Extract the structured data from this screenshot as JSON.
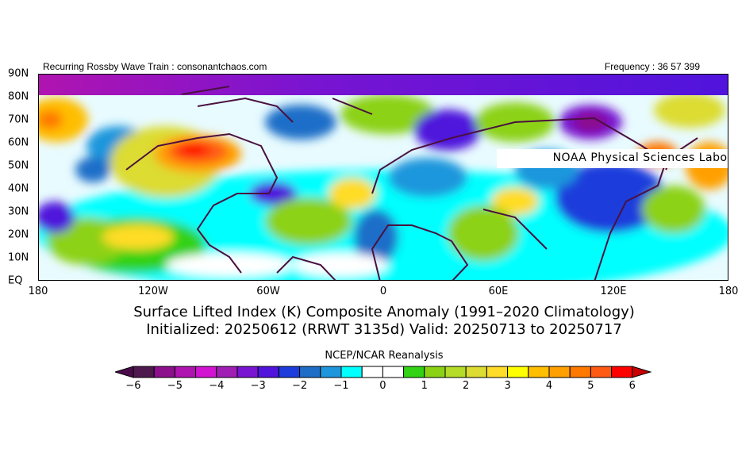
{
  "header": {
    "left": "Recurring Rossby Wave Train : consonantchaos.com",
    "right": "Frequency : 36 57 399",
    "credit": "NOAA Physical Sciences Laboratory"
  },
  "axes": {
    "lat_labels": [
      "90N",
      "80N",
      "70N",
      "60N",
      "50N",
      "40N",
      "30N",
      "20N",
      "10N",
      "EQ"
    ],
    "lon_labels": [
      "180",
      "120W",
      "60W",
      "0",
      "60E",
      "120E",
      "180"
    ]
  },
  "title": {
    "line1": "Surface Lifted Index (K) Composite Anomaly (1991–2020 Climatology)",
    "line2": "Initialized: 20250612 (RRWT 3135d) Valid: 20250713 to 20250717"
  },
  "colorbar": {
    "title": "NCEP/NCAR Reanalysis",
    "labels": [
      "−6",
      "−5",
      "−4",
      "−3",
      "−2",
      "−1",
      "0",
      "1",
      "2",
      "3",
      "4",
      "5",
      "6"
    ],
    "range": [
      -6,
      6
    ],
    "step": 0.5,
    "colors": [
      "#4e1a4e",
      "#8c0f8c",
      "#b014b0",
      "#d214d2",
      "#a01eb4",
      "#7814d2",
      "#5014dc",
      "#1e3cdc",
      "#1e6ec8",
      "#1e96dc",
      "#00ffff",
      "#ffffff",
      "#ffffff",
      "#32d214",
      "#8cd214",
      "#b4dc28",
      "#dcdc32",
      "#ffdc28",
      "#ffff00",
      "#ffbe00",
      "#ffa000",
      "#ff7800",
      "#ff5a14",
      "#ff0000"
    ],
    "under_color": "#4b0a4b",
    "over_color": "#c80000"
  }
}
